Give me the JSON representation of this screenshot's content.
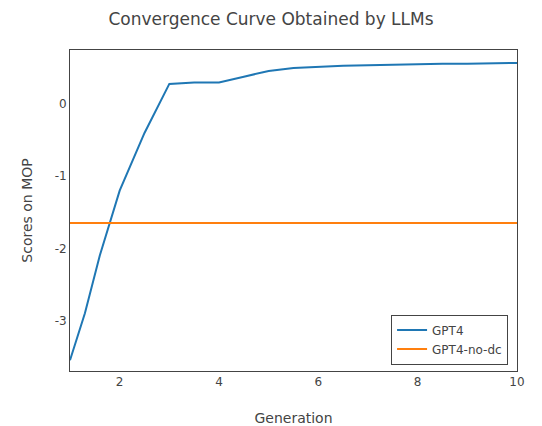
{
  "chart_data": {
    "type": "line",
    "title": "Convergence Curve Obtained by LLMs",
    "xlabel": "Generation",
    "ylabel": "Scores on MOP",
    "series": [
      {
        "name": "GPT4",
        "color": "#1f77b4",
        "x": [
          1,
          1.3,
          1.6,
          2.0,
          2.5,
          3.0,
          3.5,
          4.0,
          4.5,
          5.0,
          5.5,
          6.0,
          6.5,
          7.0,
          7.5,
          8.0,
          8.5,
          9.0,
          9.5,
          10.0
        ],
        "values": [
          -3.55,
          -2.9,
          -2.1,
          -1.2,
          -0.4,
          0.28,
          0.3,
          0.3,
          0.38,
          0.46,
          0.5,
          0.52,
          0.53,
          0.54,
          0.55,
          0.55,
          0.56,
          0.56,
          0.57,
          0.57
        ]
      },
      {
        "name": "GPT4-no-dc",
        "color": "#ff7f0e",
        "x": [
          1.0,
          10.0
        ],
        "values": [
          -1.65,
          -1.65
        ]
      }
    ],
    "xlim": [
      1,
      10
    ],
    "ylim": [
      -3.7,
      0.75
    ],
    "xticks": [
      2,
      4,
      6,
      8,
      10
    ],
    "yticks": [
      0,
      -1,
      -2,
      -3
    ],
    "legend": "lower right",
    "grid": false
  }
}
